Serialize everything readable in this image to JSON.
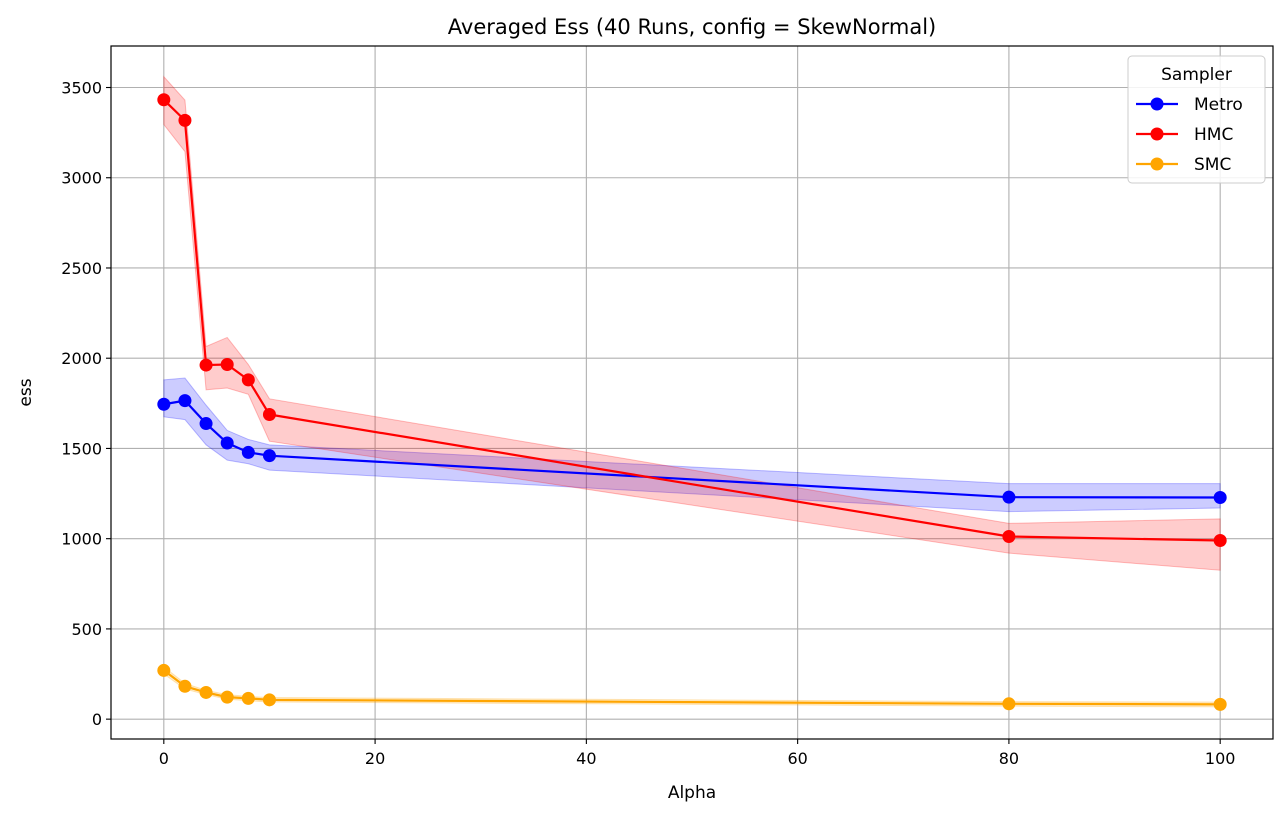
{
  "chart_data": {
    "type": "line",
    "title": "Averaged Ess (40 Runs, config = SkewNormal)",
    "xlabel": "Alpha",
    "ylabel": "ess",
    "xlim": [
      -5,
      105
    ],
    "ylim": [
      -110,
      3730
    ],
    "xticks": [
      0,
      20,
      40,
      60,
      80,
      100
    ],
    "yticks": [
      0,
      500,
      1000,
      1500,
      2000,
      2500,
      3000,
      3500
    ],
    "grid": true,
    "legend": {
      "title": "Sampler",
      "position": "top-right"
    },
    "x": [
      0,
      2,
      4,
      6,
      8,
      10,
      80,
      100
    ],
    "series": [
      {
        "name": "Metro",
        "color": "#0000ff",
        "values": [
          1745,
          1765,
          1638,
          1530,
          1478,
          1460,
          1230,
          1228
        ],
        "upper": [
          1880,
          1890,
          1740,
          1600,
          1550,
          1520,
          1305,
          1305
        ],
        "lower": [
          1675,
          1660,
          1520,
          1435,
          1415,
          1380,
          1150,
          1170
        ]
      },
      {
        "name": "HMC",
        "color": "#ff0000",
        "values": [
          3432,
          3318,
          1962,
          1965,
          1880,
          1688,
          1012,
          990
        ],
        "upper": [
          3560,
          3430,
          2065,
          2115,
          1965,
          1775,
          1085,
          1110
        ],
        "lower": [
          3295,
          3145,
          1825,
          1835,
          1800,
          1540,
          920,
          825
        ]
      },
      {
        "name": "SMC",
        "color": "#ffa500",
        "values": [
          270,
          182,
          148,
          122,
          115,
          107,
          85,
          82
        ],
        "upper": [
          290,
          198,
          160,
          136,
          126,
          120,
          97,
          95
        ],
        "lower": [
          250,
          167,
          136,
          110,
          102,
          95,
          72,
          68
        ]
      }
    ]
  }
}
